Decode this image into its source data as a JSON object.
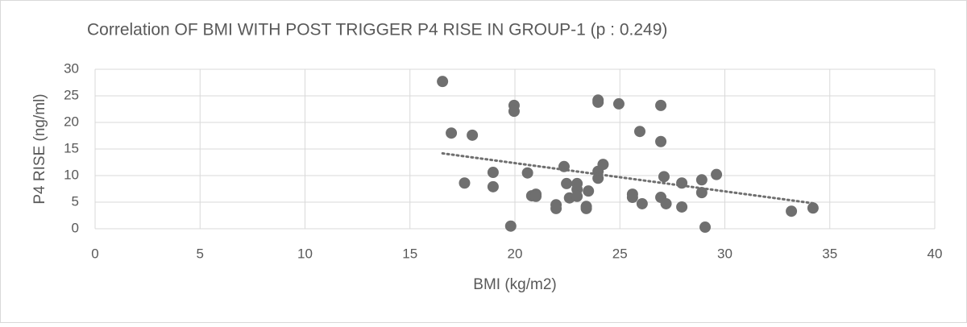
{
  "chart_data": {
    "type": "scatter",
    "title": "Correlation OF BMI WITH POST TRIGGER P4 RISE IN GROUP-1 (p : 0.249)",
    "x_label": "BMI (kg/m2)",
    "y_label": "P4 RISE (ng/ml)",
    "x": [
      16.55,
      16.97,
      17.97,
      17.6,
      18.96,
      18.96,
      19.96,
      19.96,
      19.8,
      20.6,
      20.8,
      21.0,
      21.0,
      21.96,
      21.96,
      22.34,
      22.46,
      22.6,
      22.96,
      22.96,
      22.96,
      23.4,
      23.4,
      23.5,
      23.96,
      23.96,
      23.96,
      23.96,
      24.2,
      24.95,
      25.6,
      25.6,
      25.95,
      26.06,
      26.95,
      26.95,
      26.95,
      27.1,
      27.2,
      27.95,
      27.95,
      28.9,
      28.9,
      29.06,
      29.6,
      33.17,
      34.2
    ],
    "series": [
      {
        "name": "P4 RISE",
        "color": "#6f6f6f",
        "values": [
          27.7,
          18.0,
          17.6,
          8.6,
          10.6,
          7.9,
          23.2,
          22.1,
          0.5,
          10.5,
          6.2,
          6.5,
          6.1,
          4.5,
          3.8,
          11.7,
          8.5,
          5.8,
          8.5,
          7.4,
          6.1,
          3.8,
          4.2,
          7.1,
          24.2,
          23.8,
          10.8,
          9.5,
          12.1,
          23.5,
          6.5,
          5.9,
          18.3,
          4.7,
          23.2,
          16.4,
          5.9,
          9.8,
          4.7,
          8.6,
          4.1,
          9.2,
          6.8,
          0.3,
          10.2,
          3.3,
          3.9
        ]
      }
    ],
    "trendline": "linear",
    "xlim": [
      0,
      40
    ],
    "xticks": [
      0,
      5,
      10,
      15,
      20,
      25,
      30,
      35,
      40
    ],
    "ylim": [
      0,
      30
    ],
    "yticks": [
      0,
      5,
      10,
      15,
      20,
      25,
      30
    ],
    "grid": true
  }
}
